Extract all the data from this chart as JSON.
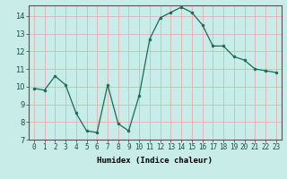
{
  "x": [
    0,
    1,
    2,
    3,
    4,
    5,
    6,
    7,
    8,
    9,
    10,
    11,
    12,
    13,
    14,
    15,
    16,
    17,
    18,
    19,
    20,
    21,
    22,
    23
  ],
  "y": [
    9.9,
    9.8,
    10.6,
    10.1,
    8.5,
    7.5,
    7.4,
    10.1,
    7.9,
    7.5,
    9.5,
    12.7,
    13.9,
    14.2,
    14.5,
    14.2,
    13.5,
    12.3,
    12.3,
    11.7,
    11.5,
    11.0,
    10.9,
    10.8
  ],
  "xlabel": "Humidex (Indice chaleur)",
  "ylim": [
    7,
    14.6
  ],
  "xlim": [
    -0.5,
    23.5
  ],
  "yticks": [
    7,
    8,
    9,
    10,
    11,
    12,
    13,
    14
  ],
  "xticks": [
    0,
    1,
    2,
    3,
    4,
    5,
    6,
    7,
    8,
    9,
    10,
    11,
    12,
    13,
    14,
    15,
    16,
    17,
    18,
    19,
    20,
    21,
    22,
    23
  ],
  "line_color": "#1a6b5a",
  "marker": "o",
  "marker_size": 2.0,
  "bg_color": "#c8ece8",
  "grid_color": "#e8b0b0",
  "axes_color": "#555555",
  "tick_fontsize": 5.5,
  "xlabel_fontsize": 6.5
}
